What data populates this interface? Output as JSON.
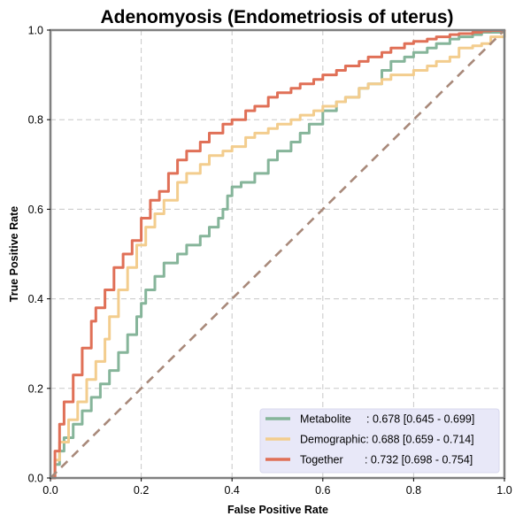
{
  "chart_data": {
    "type": "line",
    "title": "Adenomyosis (Endometriosis of uterus)",
    "xlabel": "False Positive Rate",
    "ylabel": "True Positive Rate",
    "xlim": [
      0,
      1
    ],
    "ylim": [
      0,
      1
    ],
    "x_ticks": [
      "0.0",
      "0.2",
      "0.4",
      "0.6",
      "0.8",
      "1.0"
    ],
    "y_ticks": [
      "0.0",
      "0.2",
      "0.4",
      "0.6",
      "0.8",
      "1.0"
    ],
    "tick_values": [
      0,
      0.2,
      0.4,
      0.6,
      0.8,
      1.0
    ],
    "grid": true,
    "legend_position": "lower-right",
    "series": [
      {
        "name": "Metabolite",
        "legend_label": "Metabolite     : 0.678 [0.645 - 0.699]",
        "color": "#86b59a",
        "x": [
          0,
          0.01,
          0.02,
          0.03,
          0.05,
          0.07,
          0.09,
          0.11,
          0.13,
          0.15,
          0.17,
          0.19,
          0.2,
          0.21,
          0.23,
          0.25,
          0.28,
          0.3,
          0.33,
          0.35,
          0.37,
          0.38,
          0.39,
          0.4,
          0.42,
          0.45,
          0.48,
          0.5,
          0.53,
          0.55,
          0.57,
          0.6,
          0.63,
          0.65,
          0.68,
          0.7,
          0.73,
          0.75,
          0.78,
          0.8,
          0.83,
          0.85,
          0.88,
          0.9,
          0.93,
          0.95,
          1.0
        ],
        "y": [
          0,
          0.03,
          0.06,
          0.09,
          0.12,
          0.15,
          0.18,
          0.21,
          0.24,
          0.28,
          0.32,
          0.36,
          0.39,
          0.42,
          0.45,
          0.48,
          0.5,
          0.52,
          0.54,
          0.56,
          0.58,
          0.6,
          0.63,
          0.65,
          0.66,
          0.68,
          0.71,
          0.73,
          0.75,
          0.77,
          0.79,
          0.82,
          0.84,
          0.85,
          0.87,
          0.88,
          0.91,
          0.93,
          0.94,
          0.95,
          0.96,
          0.97,
          0.98,
          0.985,
          0.99,
          0.995,
          1.0
        ]
      },
      {
        "name": "Demographic",
        "legend_label": "Demographic: 0.688 [0.659 - 0.714]",
        "color": "#f3cd8e",
        "x": [
          0,
          0.01,
          0.02,
          0.04,
          0.06,
          0.08,
          0.1,
          0.12,
          0.13,
          0.15,
          0.17,
          0.19,
          0.21,
          0.23,
          0.25,
          0.28,
          0.3,
          0.33,
          0.35,
          0.38,
          0.4,
          0.43,
          0.45,
          0.48,
          0.5,
          0.53,
          0.55,
          0.58,
          0.6,
          0.63,
          0.65,
          0.68,
          0.7,
          0.73,
          0.75,
          0.78,
          0.8,
          0.83,
          0.85,
          0.88,
          0.9,
          0.93,
          0.95,
          0.97,
          1.0
        ],
        "y": [
          0,
          0.04,
          0.08,
          0.13,
          0.17,
          0.22,
          0.26,
          0.31,
          0.36,
          0.42,
          0.47,
          0.52,
          0.56,
          0.59,
          0.62,
          0.66,
          0.68,
          0.7,
          0.72,
          0.73,
          0.74,
          0.76,
          0.77,
          0.78,
          0.79,
          0.8,
          0.81,
          0.82,
          0.83,
          0.84,
          0.85,
          0.87,
          0.88,
          0.89,
          0.9,
          0.9,
          0.91,
          0.92,
          0.93,
          0.94,
          0.96,
          0.965,
          0.97,
          0.985,
          1.0
        ]
      },
      {
        "name": "Together",
        "legend_label": "Together       : 0.732 [0.698 - 0.754]",
        "color": "#e07057",
        "x": [
          0,
          0.01,
          0.02,
          0.03,
          0.05,
          0.07,
          0.09,
          0.1,
          0.12,
          0.14,
          0.16,
          0.18,
          0.2,
          0.22,
          0.24,
          0.26,
          0.28,
          0.3,
          0.33,
          0.35,
          0.38,
          0.4,
          0.43,
          0.45,
          0.48,
          0.5,
          0.53,
          0.55,
          0.58,
          0.6,
          0.63,
          0.65,
          0.68,
          0.7,
          0.73,
          0.75,
          0.78,
          0.8,
          0.83,
          0.85,
          0.88,
          0.9,
          0.93,
          0.95,
          0.97,
          1.0
        ],
        "y": [
          0,
          0.06,
          0.12,
          0.17,
          0.23,
          0.29,
          0.35,
          0.38,
          0.42,
          0.47,
          0.5,
          0.53,
          0.58,
          0.62,
          0.64,
          0.68,
          0.71,
          0.73,
          0.75,
          0.77,
          0.79,
          0.8,
          0.82,
          0.83,
          0.85,
          0.86,
          0.87,
          0.88,
          0.89,
          0.9,
          0.91,
          0.92,
          0.93,
          0.94,
          0.95,
          0.96,
          0.97,
          0.975,
          0.98,
          0.985,
          0.99,
          0.992,
          0.995,
          0.998,
          0.999,
          1.0
        ]
      },
      {
        "name": "chance",
        "color": "#a8897a",
        "x": [
          0,
          1
        ],
        "y": [
          0,
          1
        ]
      }
    ],
    "legend_bg": "#e8e8f8",
    "axes_color": "#808080",
    "grid_color": "#c8c8c8"
  }
}
